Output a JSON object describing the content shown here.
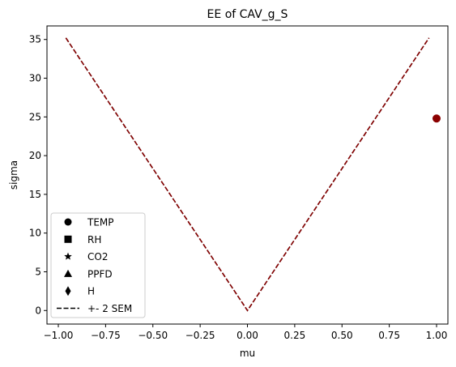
{
  "chart_data": {
    "type": "scatter",
    "title": "EE of CAV_g_S",
    "xlabel": "mu",
    "ylabel": "sigma",
    "xlim": [
      -1.06,
      1.06
    ],
    "ylim": [
      -1.75,
      36.75
    ],
    "x_ticks": [
      -1.0,
      -0.75,
      -0.5,
      -0.25,
      0.0,
      0.25,
      0.5,
      0.75,
      1.0
    ],
    "x_tick_labels": [
      "−1.00",
      "−0.75",
      "−0.50",
      "−0.25",
      "0.00",
      "0.25",
      "0.50",
      "0.75",
      "1.00"
    ],
    "y_ticks": [
      0,
      5,
      10,
      15,
      20,
      25,
      30,
      35
    ],
    "y_tick_labels": [
      "0",
      "5",
      "10",
      "15",
      "20",
      "25",
      "30",
      "35"
    ],
    "grid": false,
    "legend_position": "lower-left",
    "points": [
      {
        "name": "CAV_g_S",
        "x": 1.0,
        "y": 24.8,
        "marker": "circle",
        "color": "#8b0000"
      }
    ],
    "sem_lines": [
      {
        "name": "+- 2 SEM",
        "x": [
          -0.96,
          0.0,
          0.96
        ],
        "y": [
          35.2,
          0.0,
          35.2
        ],
        "color": "#000000",
        "style": "dashed"
      },
      {
        "name": "+- 2 SEM",
        "x": [
          -0.96,
          0.0,
          0.96
        ],
        "y": [
          35.2,
          0.0,
          35.2
        ],
        "color": "#8b0000",
        "style": "dashed"
      }
    ],
    "legend": [
      {
        "label": "TEMP",
        "marker": "circle"
      },
      {
        "label": "RH",
        "marker": "square"
      },
      {
        "label": "CO2",
        "marker": "star"
      },
      {
        "label": "PPFD",
        "marker": "triangle"
      },
      {
        "label": "H",
        "marker": "diamond"
      },
      {
        "label": "+- 2 SEM",
        "marker": "dashed-line"
      }
    ]
  }
}
